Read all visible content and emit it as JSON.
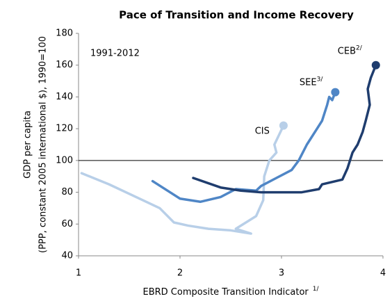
{
  "chart_data": {
    "type": "line",
    "title": "Pace of Transition and Income Recovery",
    "xlabel": "EBRD Composite Transition Indicator",
    "xlabel_note": "1/",
    "ylabel": [
      "GDP per capita",
      "(PPP, constant 2005 international $), 1990=100"
    ],
    "annotation": "1991-2012",
    "hline": 100,
    "xlim": [
      1,
      4
    ],
    "xticks": [
      1,
      2,
      3,
      4
    ],
    "ylim": [
      40,
      180
    ],
    "yticks": [
      40,
      60,
      80,
      100,
      120,
      140,
      160,
      180
    ],
    "series": [
      {
        "name": "CIS",
        "color": "#b8cfe8",
        "x": [
          1.03,
          1.3,
          1.6,
          1.8,
          1.94,
          2.08,
          2.28,
          2.5,
          2.7,
          2.55,
          2.75,
          2.82,
          2.83,
          2.88,
          2.95,
          2.93,
          3.02
        ],
        "values": [
          92,
          85,
          76,
          70,
          61,
          59,
          57,
          56,
          54,
          57,
          65,
          75,
          90,
          100,
          105,
          110,
          122
        ]
      },
      {
        "name": "SEE",
        "label_note": "3/",
        "color": "#4f86c6",
        "x": [
          1.73,
          2.0,
          2.2,
          2.4,
          2.55,
          2.75,
          2.8,
          2.95,
          3.1,
          3.17,
          3.25,
          3.35,
          3.4,
          3.45,
          3.47,
          3.5,
          3.53
        ],
        "values": [
          87,
          76,
          74,
          77,
          82,
          81,
          84,
          89,
          94,
          100,
          110,
          120,
          125,
          135,
          140,
          138,
          143
        ]
      },
      {
        "name": "CEB",
        "label_note": "2/",
        "color": "#1f3d6e",
        "x": [
          2.13,
          2.4,
          2.6,
          2.8,
          3.0,
          3.2,
          3.37,
          3.4,
          3.6,
          3.65,
          3.7,
          3.75,
          3.8,
          3.83,
          3.87,
          3.85,
          3.88,
          3.93
        ],
        "values": [
          89,
          83,
          81,
          80,
          80,
          80,
          82,
          85,
          88,
          95,
          105,
          110,
          118,
          125,
          135,
          145,
          152,
          160
        ]
      }
    ]
  }
}
